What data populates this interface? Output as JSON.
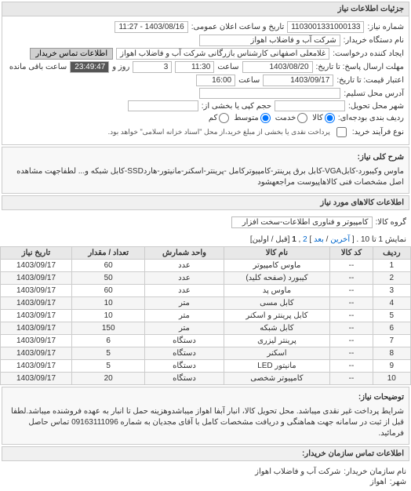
{
  "header": {
    "title": "جزئیات اطلاعات نیاز"
  },
  "fields": {
    "need_no_label": "شماره نیاز:",
    "need_no": "1103001331000133",
    "announce_label": "تاریخ و ساعت اعلان عمومی:",
    "announce": "1403/08/16 - 11:27",
    "buyer_label": "نام دستگاه خریدار:",
    "buyer": "شرکت آب و فاضلاب اهواز",
    "requester_label": "ایجاد کننده درخواست:",
    "requester": "غلامعلی اصفهانی کارشناس بازرگانی شرکت آب و فاضلاب اهواز",
    "contact_btn": "اطلاعات تماس خریدار",
    "send_deadline_label": "مهلت ارسال پاسخ: تا تاریخ:",
    "send_date": "1403/08/20",
    "time_label": "ساعت",
    "send_time": "11:30",
    "and_label": "و",
    "days_label": "روز و",
    "days": "3",
    "countdown": "23:49:47",
    "remaining_label": "ساعت باقی مانده",
    "validity_label": "اعتبار قیمت: تا تاریخ:",
    "validity_date": "1403/09/17",
    "validity_time": "16:00",
    "delivery_addr_label": "آدرس محل تسلیم:",
    "delivery_addr": "",
    "delivery_city_label": "شهر محل تحویل:",
    "delivery_city": "",
    "delivery_vol_label": "حجم کپی یا بخشی از:",
    "delivery_vol": "",
    "budget_label": "ردیف بندی بودجه‌ای:",
    "r_good": "کالا",
    "r_service": "خدمت",
    "r_mid": "متوسط",
    "r_low": "کم",
    "process_label": "نوع فرآیند خرید:",
    "process_note": "پرداخت نقدی یا بخشی از مبلغ خرید،از محل \"اسناد خزانه اسلامی\" خواهد بود."
  },
  "general_desc": {
    "label": "شرح کلی نیاز:",
    "text": "ماوس وکیبورد-کابلVGA-کابل برق پرینتر-کامپیوترکامل -پرینتر-اسکنر-مانیتور-هاردSSD-کابل شبکه و... لطفاجهت مشاهده اصل مشخصات فنی کالاهاپیوست مراجعهشود"
  },
  "goods_section": {
    "title": "اطلاعات کالاهای مورد نیاز",
    "group_label": "گروه کالا:",
    "group": "کامپیوتر و فناوری اطلاعات-سخت افزار"
  },
  "pager": {
    "text_prefix": "نمایش 1 تا 10 . [",
    "first": "آخرین",
    "sep1": " / ",
    "next": "بعد",
    "sep2": " ] ",
    "p2": "2",
    "sep3": " ,",
    "p1": "1",
    "text_suffix": " [قبل / اولین]"
  },
  "table": {
    "columns": [
      "ردیف",
      "کد کالا",
      "نام کالا",
      "واحد شمارش",
      "تعداد / مقدار",
      "تاریخ نیاز"
    ],
    "rows": [
      [
        "1",
        "--",
        "ماوس کامپیوتر",
        "عدد",
        "60",
        "1403/09/17"
      ],
      [
        "2",
        "--",
        "کیبورد (صفحه کلید)",
        "عدد",
        "50",
        "1403/09/17"
      ],
      [
        "3",
        "--",
        "ماوس پد",
        "عدد",
        "60",
        "1403/09/17"
      ],
      [
        "4",
        "--",
        "کابل مسی",
        "متر",
        "10",
        "1403/09/17"
      ],
      [
        "5",
        "--",
        "کابل پرینتر و اسکنر",
        "متر",
        "10",
        "1403/09/17"
      ],
      [
        "6",
        "--",
        "کابل شبکه",
        "متر",
        "150",
        "1403/09/17"
      ],
      [
        "7",
        "--",
        "پرینتر لیزری",
        "دستگاه",
        "6",
        "1403/09/17"
      ],
      [
        "8",
        "--",
        "اسکنر",
        "دستگاه",
        "5",
        "1403/09/17"
      ],
      [
        "9",
        "--",
        "مانیتور LED",
        "دستگاه",
        "5",
        "1403/09/17"
      ],
      [
        "10",
        "--",
        "کامپیوتر شخصی",
        "دستگاه",
        "20",
        "1403/09/17"
      ]
    ]
  },
  "notes": {
    "label": "توضیحات نیاز:",
    "text": "شرایط پرداخت غیر نقدی میباشد. محل تحویل کالا، انبار آبفا اهواز میباشدوهزینه حمل تا انبار به عهده فروشنده میباشد.لطفا قبل از ثبت در سامانه جهت هماهنگی و دریافت مشخصات کامل با آقای مجدیان به شماره 09163111096 تماس حاصل فرمائید."
  },
  "footer": {
    "title": "اطلاعات تماس سازمان خریدار:",
    "org_label": "نام سازمان خریدار:",
    "org": "شرکت آب و فاضلاب اهواز",
    "city_label": "شهر:",
    "city": "اهواز"
  }
}
